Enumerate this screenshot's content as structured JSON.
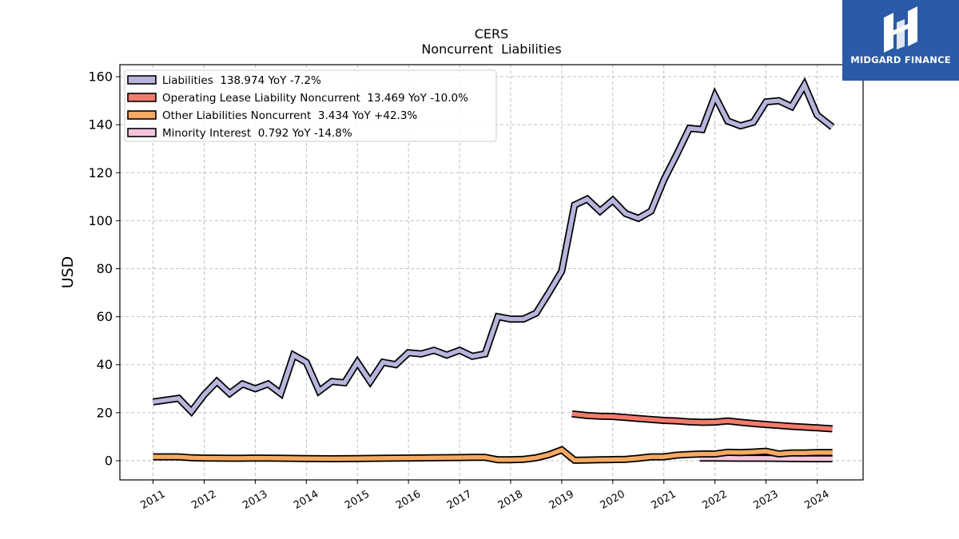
{
  "brand": {
    "name": "MIDGARD FINANCE",
    "logo_icon": "midgard-logo-icon"
  },
  "chart_data": {
    "type": "line",
    "title": "CERS",
    "subtitle": "Noncurrent  Liabilities",
    "ylabel": "USD",
    "xlabel": "",
    "ylim": [
      -8,
      165
    ],
    "xlim": [
      2010.35,
      2024.9
    ],
    "grid": true,
    "legend_position": "top-left",
    "yticks": [
      0,
      20,
      40,
      60,
      80,
      100,
      120,
      140,
      160
    ],
    "xticks": [
      "2011",
      "2012",
      "2013",
      "2014",
      "2015",
      "2016",
      "2017",
      "2018",
      "2019",
      "2020",
      "2021",
      "2022",
      "2023",
      "2024"
    ],
    "series": [
      {
        "name": "Liabilities",
        "legend": "Liabilities  138.974 YoY -7.2%",
        "color": "#b7b5dc",
        "x": [
          2011.0,
          2011.5,
          2011.75,
          2012.0,
          2012.25,
          2012.5,
          2012.75,
          2013.0,
          2013.25,
          2013.5,
          2013.75,
          2014.0,
          2014.25,
          2014.5,
          2014.75,
          2015.0,
          2015.25,
          2015.5,
          2015.75,
          2016.0,
          2016.25,
          2016.5,
          2016.75,
          2017.0,
          2017.25,
          2017.5,
          2017.75,
          2018.0,
          2018.25,
          2018.5,
          2018.75,
          2019.0,
          2019.25,
          2019.5,
          2019.75,
          2020.0,
          2020.25,
          2020.5,
          2020.75,
          2021.0,
          2021.25,
          2021.5,
          2021.75,
          2022.0,
          2022.25,
          2022.5,
          2022.75,
          2023.0,
          2023.25,
          2023.5,
          2023.75,
          2024.0,
          2024.3
        ],
        "values": [
          24.5,
          26.0,
          20.5,
          27.5,
          33.0,
          28.0,
          32.0,
          30.0,
          32.0,
          28.0,
          44.0,
          41.0,
          29.0,
          33.0,
          32.5,
          41.0,
          33.0,
          41.0,
          40.0,
          45.0,
          44.5,
          46.0,
          44.0,
          46.0,
          43.5,
          44.5,
          60.0,
          59.0,
          59.0,
          61.5,
          70.0,
          79.0,
          106.5,
          109.0,
          104.0,
          108.5,
          103.0,
          101.0,
          104.0,
          117.0,
          127.5,
          138.5,
          138.0,
          152.0,
          141.5,
          139.5,
          141.0,
          149.5,
          150.0,
          147.5,
          156.5,
          144.0,
          139.0
        ]
      },
      {
        "name": "Operating Lease Liability Noncurrent",
        "legend": "Operating Lease Liability Noncurrent  13.469 YoY -10.0%",
        "color": "#f27b6c",
        "x": [
          2019.2,
          2019.5,
          2019.75,
          2020.0,
          2020.25,
          2020.5,
          2020.75,
          2021.0,
          2021.25,
          2021.5,
          2021.75,
          2022.0,
          2022.25,
          2022.5,
          2022.75,
          2023.0,
          2023.25,
          2023.5,
          2023.75,
          2024.0,
          2024.3
        ],
        "values": [
          19.5,
          18.8,
          18.5,
          18.4,
          18.0,
          17.6,
          17.2,
          16.8,
          16.6,
          16.2,
          16.0,
          16.1,
          16.6,
          16.0,
          15.5,
          15.1,
          14.7,
          14.3,
          14.0,
          13.7,
          13.3
        ]
      },
      {
        "name": "Other Liabilities Noncurrent",
        "legend": "Other Liabilities Noncurrent  3.434 YoY +42.3%",
        "color": "#f5a961",
        "x": [
          2011.0,
          2011.5,
          2011.75,
          2012.0,
          2012.5,
          2012.75,
          2013.0,
          2013.5,
          2014.0,
          2014.5,
          2015.0,
          2015.5,
          2016.0,
          2016.5,
          2017.0,
          2017.25,
          2017.5,
          2017.75,
          2018.0,
          2018.25,
          2018.5,
          2018.75,
          2019.0,
          2019.25,
          2019.5,
          2019.75,
          2020.0,
          2020.25,
          2020.5,
          2020.75,
          2021.0,
          2021.25,
          2021.5,
          2021.75,
          2022.0,
          2022.25,
          2022.5,
          2022.75,
          2023.0,
          2023.25,
          2023.5,
          2023.75,
          2024.0,
          2024.3
        ],
        "values": [
          1.6,
          1.6,
          1.2,
          1.1,
          1.0,
          1.0,
          1.1,
          1.0,
          0.9,
          0.8,
          0.9,
          1.0,
          1.1,
          1.2,
          1.3,
          1.4,
          1.4,
          0.4,
          0.4,
          0.6,
          1.2,
          2.5,
          4.5,
          0.2,
          0.3,
          0.4,
          0.5,
          0.6,
          1.0,
          1.6,
          1.6,
          2.3,
          2.6,
          2.8,
          2.8,
          3.5,
          3.4,
          3.6,
          3.9,
          2.8,
          3.2,
          3.2,
          3.4,
          3.4
        ]
      },
      {
        "name": "Minority Interest",
        "legend": "Minority Interest  0.792 YoY -14.8%",
        "color": "#f5c5dd",
        "x": [
          2021.7,
          2022.0,
          2022.5,
          2023.0,
          2023.5,
          2024.0,
          2024.3
        ],
        "values": [
          1.1,
          1.1,
          1.0,
          1.0,
          0.9,
          0.8,
          0.8
        ]
      }
    ]
  }
}
